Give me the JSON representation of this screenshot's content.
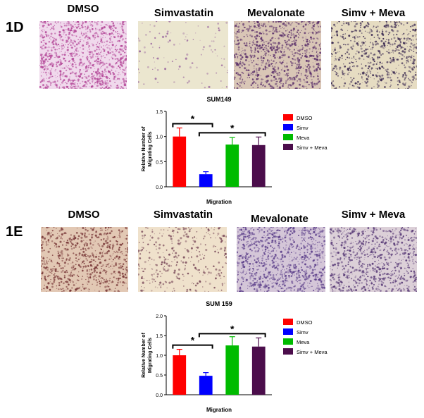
{
  "figure": {
    "panel_1d": {
      "letter": "1D",
      "image_labels": [
        "DMSO",
        "Simvastatin",
        "Mevalonate",
        "Simv + Meva"
      ]
    },
    "panel_1e": {
      "letter": "1E",
      "image_labels": [
        "DMSO",
        "Simvastatin",
        "Mevalonate",
        "Simv + Meva"
      ]
    },
    "significance_marker": "*"
  },
  "chart_data": [
    {
      "type": "bar",
      "title": "SUM149",
      "xlabel": "Migration",
      "ylabel": "Relative Number of Migrating Cells",
      "ylim": [
        0,
        1.5
      ],
      "yticks": [
        "0.0",
        "0.5",
        "1.0",
        "1.5"
      ],
      "categories": [
        "DMSO",
        "Simv",
        "Meva",
        "Simv + Meva"
      ],
      "values": [
        1.0,
        0.25,
        0.84,
        0.83
      ],
      "errors": [
        0.17,
        0.05,
        0.14,
        0.16
      ],
      "colors": [
        "#ff0000",
        "#0000ff",
        "#00bb00",
        "#4b0d4b"
      ],
      "legend": [
        "DMSO",
        "Simv",
        "Meva",
        "Simv + Meva"
      ],
      "legend_position": "right",
      "annotations": [
        {
          "text": "*",
          "from": 0,
          "to": 1
        },
        {
          "text": "*",
          "from": 1,
          "to": 3
        }
      ]
    },
    {
      "type": "bar",
      "title": "SUM 159",
      "xlabel": "Migration",
      "ylabel": "Relative Number of Migrating Cells",
      "ylim": [
        0,
        2.0
      ],
      "yticks": [
        "0.0",
        "0.5",
        "1.0",
        "1.5",
        "2.0"
      ],
      "categories": [
        "DMSO",
        "Simv",
        "Meva",
        "Simv + Meva"
      ],
      "values": [
        1.0,
        0.48,
        1.25,
        1.22
      ],
      "errors": [
        0.15,
        0.08,
        0.22,
        0.22
      ],
      "colors": [
        "#ff0000",
        "#0000ff",
        "#00bb00",
        "#4b0d4b"
      ],
      "legend": [
        "DMSO",
        "Simv",
        "Meva",
        "Simv + Meva"
      ],
      "legend_position": "right",
      "annotations": [
        {
          "text": "*",
          "from": 0,
          "to": 1
        },
        {
          "text": "*",
          "from": 1,
          "to": 3
        }
      ]
    }
  ]
}
